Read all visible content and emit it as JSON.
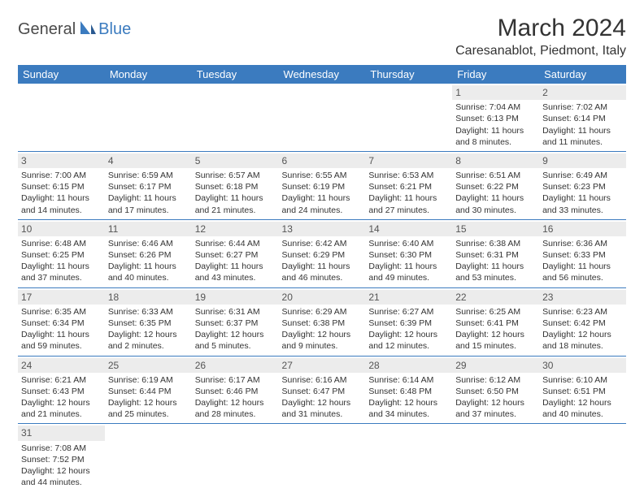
{
  "logo": {
    "text1": "General",
    "text2": "Blue"
  },
  "title": "March 2024",
  "location": "Caresanablot, Piedmont, Italy",
  "colors": {
    "header_bg": "#3b7bbf",
    "header_fg": "#ffffff",
    "daynum_bg": "#ececec",
    "border": "#3b7bbf"
  },
  "day_headers": [
    "Sunday",
    "Monday",
    "Tuesday",
    "Wednesday",
    "Thursday",
    "Friday",
    "Saturday"
  ],
  "weeks": [
    [
      null,
      null,
      null,
      null,
      null,
      {
        "n": "1",
        "sr": "Sunrise: 7:04 AM",
        "ss": "Sunset: 6:13 PM",
        "dl": "Daylight: 11 hours and 8 minutes."
      },
      {
        "n": "2",
        "sr": "Sunrise: 7:02 AM",
        "ss": "Sunset: 6:14 PM",
        "dl": "Daylight: 11 hours and 11 minutes."
      }
    ],
    [
      {
        "n": "3",
        "sr": "Sunrise: 7:00 AM",
        "ss": "Sunset: 6:15 PM",
        "dl": "Daylight: 11 hours and 14 minutes."
      },
      {
        "n": "4",
        "sr": "Sunrise: 6:59 AM",
        "ss": "Sunset: 6:17 PM",
        "dl": "Daylight: 11 hours and 17 minutes."
      },
      {
        "n": "5",
        "sr": "Sunrise: 6:57 AM",
        "ss": "Sunset: 6:18 PM",
        "dl": "Daylight: 11 hours and 21 minutes."
      },
      {
        "n": "6",
        "sr": "Sunrise: 6:55 AM",
        "ss": "Sunset: 6:19 PM",
        "dl": "Daylight: 11 hours and 24 minutes."
      },
      {
        "n": "7",
        "sr": "Sunrise: 6:53 AM",
        "ss": "Sunset: 6:21 PM",
        "dl": "Daylight: 11 hours and 27 minutes."
      },
      {
        "n": "8",
        "sr": "Sunrise: 6:51 AM",
        "ss": "Sunset: 6:22 PM",
        "dl": "Daylight: 11 hours and 30 minutes."
      },
      {
        "n": "9",
        "sr": "Sunrise: 6:49 AM",
        "ss": "Sunset: 6:23 PM",
        "dl": "Daylight: 11 hours and 33 minutes."
      }
    ],
    [
      {
        "n": "10",
        "sr": "Sunrise: 6:48 AM",
        "ss": "Sunset: 6:25 PM",
        "dl": "Daylight: 11 hours and 37 minutes."
      },
      {
        "n": "11",
        "sr": "Sunrise: 6:46 AM",
        "ss": "Sunset: 6:26 PM",
        "dl": "Daylight: 11 hours and 40 minutes."
      },
      {
        "n": "12",
        "sr": "Sunrise: 6:44 AM",
        "ss": "Sunset: 6:27 PM",
        "dl": "Daylight: 11 hours and 43 minutes."
      },
      {
        "n": "13",
        "sr": "Sunrise: 6:42 AM",
        "ss": "Sunset: 6:29 PM",
        "dl": "Daylight: 11 hours and 46 minutes."
      },
      {
        "n": "14",
        "sr": "Sunrise: 6:40 AM",
        "ss": "Sunset: 6:30 PM",
        "dl": "Daylight: 11 hours and 49 minutes."
      },
      {
        "n": "15",
        "sr": "Sunrise: 6:38 AM",
        "ss": "Sunset: 6:31 PM",
        "dl": "Daylight: 11 hours and 53 minutes."
      },
      {
        "n": "16",
        "sr": "Sunrise: 6:36 AM",
        "ss": "Sunset: 6:33 PM",
        "dl": "Daylight: 11 hours and 56 minutes."
      }
    ],
    [
      {
        "n": "17",
        "sr": "Sunrise: 6:35 AM",
        "ss": "Sunset: 6:34 PM",
        "dl": "Daylight: 11 hours and 59 minutes."
      },
      {
        "n": "18",
        "sr": "Sunrise: 6:33 AM",
        "ss": "Sunset: 6:35 PM",
        "dl": "Daylight: 12 hours and 2 minutes."
      },
      {
        "n": "19",
        "sr": "Sunrise: 6:31 AM",
        "ss": "Sunset: 6:37 PM",
        "dl": "Daylight: 12 hours and 5 minutes."
      },
      {
        "n": "20",
        "sr": "Sunrise: 6:29 AM",
        "ss": "Sunset: 6:38 PM",
        "dl": "Daylight: 12 hours and 9 minutes."
      },
      {
        "n": "21",
        "sr": "Sunrise: 6:27 AM",
        "ss": "Sunset: 6:39 PM",
        "dl": "Daylight: 12 hours and 12 minutes."
      },
      {
        "n": "22",
        "sr": "Sunrise: 6:25 AM",
        "ss": "Sunset: 6:41 PM",
        "dl": "Daylight: 12 hours and 15 minutes."
      },
      {
        "n": "23",
        "sr": "Sunrise: 6:23 AM",
        "ss": "Sunset: 6:42 PM",
        "dl": "Daylight: 12 hours and 18 minutes."
      }
    ],
    [
      {
        "n": "24",
        "sr": "Sunrise: 6:21 AM",
        "ss": "Sunset: 6:43 PM",
        "dl": "Daylight: 12 hours and 21 minutes."
      },
      {
        "n": "25",
        "sr": "Sunrise: 6:19 AM",
        "ss": "Sunset: 6:44 PM",
        "dl": "Daylight: 12 hours and 25 minutes."
      },
      {
        "n": "26",
        "sr": "Sunrise: 6:17 AM",
        "ss": "Sunset: 6:46 PM",
        "dl": "Daylight: 12 hours and 28 minutes."
      },
      {
        "n": "27",
        "sr": "Sunrise: 6:16 AM",
        "ss": "Sunset: 6:47 PM",
        "dl": "Daylight: 12 hours and 31 minutes."
      },
      {
        "n": "28",
        "sr": "Sunrise: 6:14 AM",
        "ss": "Sunset: 6:48 PM",
        "dl": "Daylight: 12 hours and 34 minutes."
      },
      {
        "n": "29",
        "sr": "Sunrise: 6:12 AM",
        "ss": "Sunset: 6:50 PM",
        "dl": "Daylight: 12 hours and 37 minutes."
      },
      {
        "n": "30",
        "sr": "Sunrise: 6:10 AM",
        "ss": "Sunset: 6:51 PM",
        "dl": "Daylight: 12 hours and 40 minutes."
      }
    ],
    [
      {
        "n": "31",
        "sr": "Sunrise: 7:08 AM",
        "ss": "Sunset: 7:52 PM",
        "dl": "Daylight: 12 hours and 44 minutes."
      },
      null,
      null,
      null,
      null,
      null,
      null
    ]
  ]
}
